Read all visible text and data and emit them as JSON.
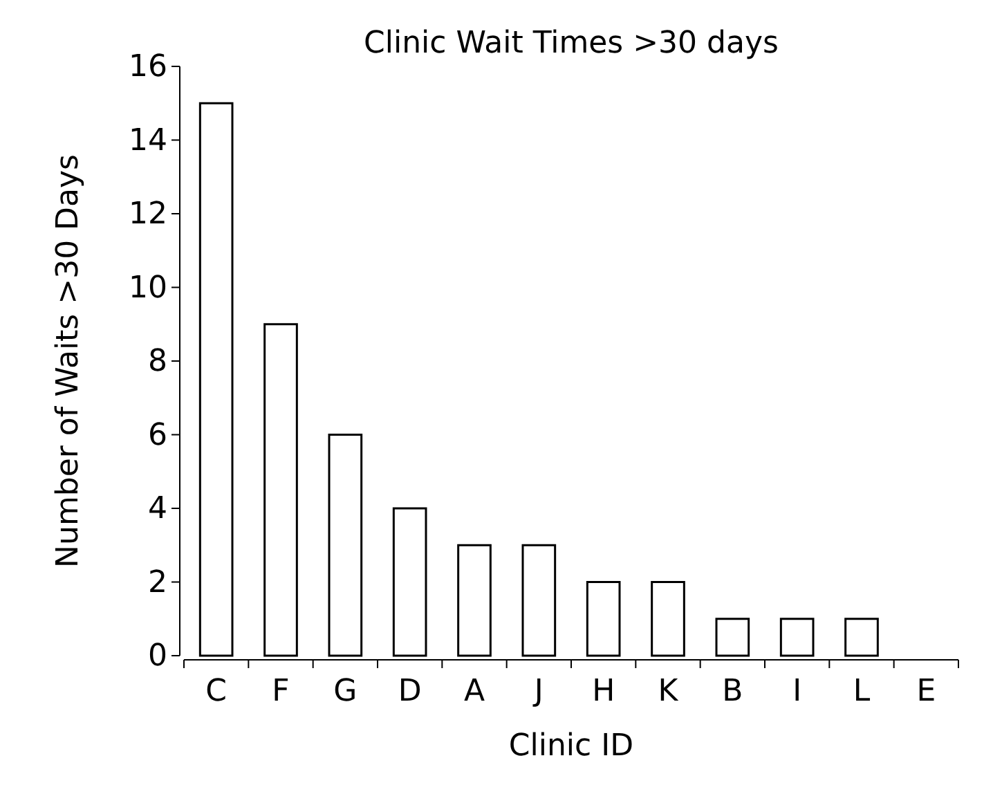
{
  "chart_data": {
    "type": "bar",
    "title": "Clinic Wait Times >30 days",
    "xlabel": "Clinic ID",
    "ylabel": "Number of Waits >30 Days",
    "categories": [
      "C",
      "F",
      "G",
      "D",
      "A",
      "J",
      "H",
      "K",
      "B",
      "I",
      "L",
      "E"
    ],
    "values": [
      15,
      9,
      6,
      4,
      3,
      3,
      2,
      2,
      1,
      1,
      1,
      0
    ],
    "color": "#ffffff",
    "ylim": [
      0,
      16
    ],
    "yticks": [
      0,
      2,
      4,
      6,
      8,
      10,
      12,
      14,
      16
    ],
    "grid": false
  }
}
